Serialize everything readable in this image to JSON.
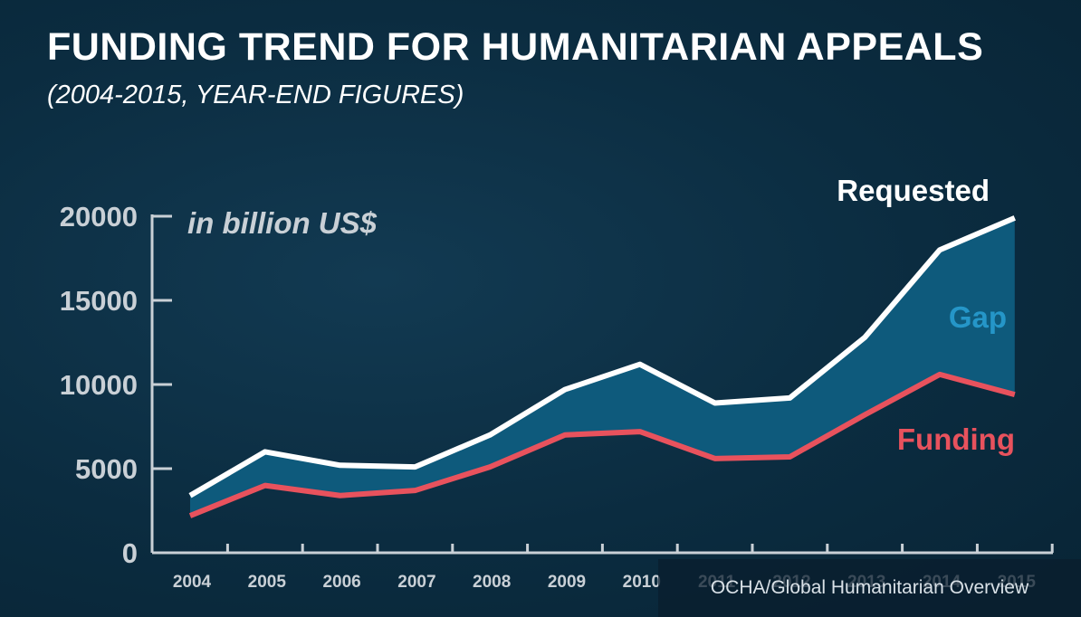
{
  "title": "FUNDING TREND FOR HUMANITARIAN APPEALS",
  "subtitle": "(2004-2015, YEAR-END FIGURES)",
  "credit": "OCHA/Global Humanitarian Overview",
  "colors": {
    "background": "#0b2c40",
    "requested": "#ffffff",
    "funding": "#e8525d",
    "gap_fill": "#0e5a7c",
    "gap_label": "#2596c8",
    "axis": "#c9d0d6"
  },
  "chart_data": {
    "type": "area",
    "unit_label": "in billion US$",
    "categories": [
      "2004",
      "2005",
      "2006",
      "2007",
      "2008",
      "2009",
      "2010",
      "2011",
      "2012",
      "2013",
      "2014",
      "2015"
    ],
    "y_ticks": [
      "0",
      "5000",
      "10000",
      "15000",
      "20000"
    ],
    "ylim": [
      0,
      20000
    ],
    "series": [
      {
        "name": "Requested",
        "values": [
          3400,
          6000,
          5200,
          5100,
          7000,
          9700,
          11200,
          8900,
          9200,
          12800,
          18000,
          19900
        ]
      },
      {
        "name": "Funding",
        "values": [
          2200,
          4000,
          3400,
          3700,
          5100,
          7000,
          7200,
          5600,
          5700,
          8200,
          10600,
          9400
        ]
      }
    ],
    "area_label": "Gap",
    "legend": "labels at right end of series",
    "grid": false
  }
}
